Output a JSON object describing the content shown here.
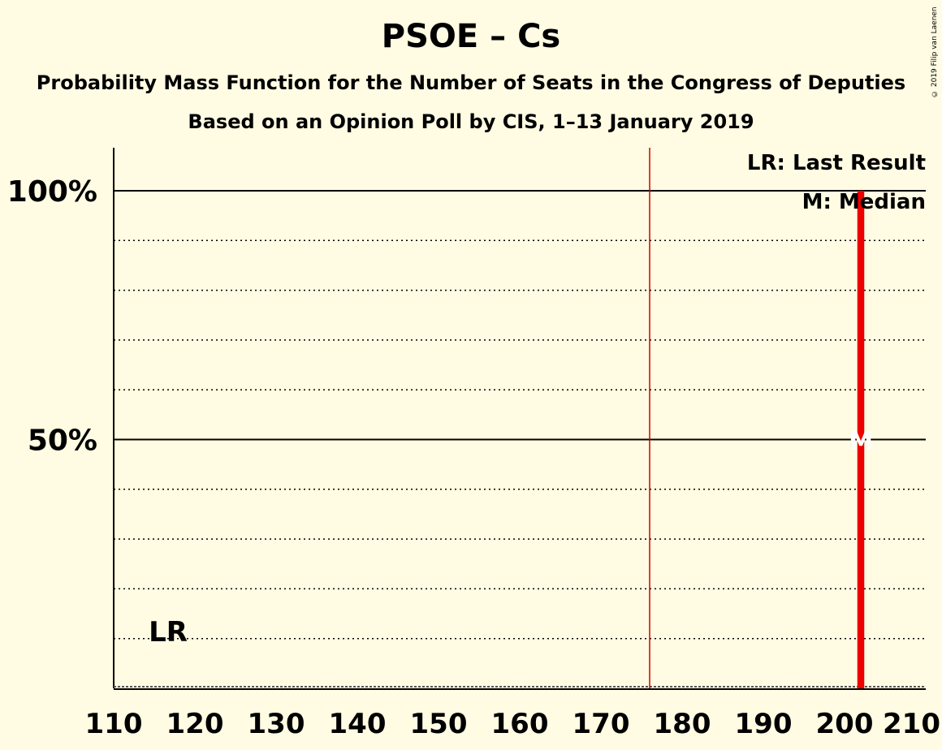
{
  "chart_data": {
    "type": "bar",
    "title": "PSOE – Cs",
    "subtitle": "Probability Mass Function for the Number of Seats in the Congress of Deputies",
    "subtitle2": "Based on an Opinion Poll by CIS, 1–13 January 2019",
    "copyright": "© 2019 Filip van Laenen",
    "xlim": [
      110,
      210
    ],
    "ylim": [
      0,
      100
    ],
    "x_ticks": [
      110,
      120,
      130,
      140,
      150,
      160,
      170,
      180,
      190,
      200,
      210
    ],
    "x_tick_labels": [
      "110",
      "120",
      "130",
      "140",
      "150",
      "160",
      "170",
      "180",
      "190",
      "200",
      "210"
    ],
    "y_ticks_labeled": [
      50,
      100
    ],
    "y_tick_labels": [
      "50%",
      "100%"
    ],
    "y_gridlines_dotted": [
      10,
      20,
      30,
      40,
      60,
      70,
      80,
      90
    ],
    "majority_line": 176,
    "last_result": 117,
    "last_result_label": "LR",
    "median": 202,
    "median_marker_label": "M",
    "legend": [
      "LR: Last Result",
      "M: Median"
    ],
    "legend_position": "top-right",
    "bars": [
      {
        "x": 202,
        "value": 100
      }
    ],
    "bar_color": "#ee0000",
    "majority_color": "#cc0000"
  }
}
